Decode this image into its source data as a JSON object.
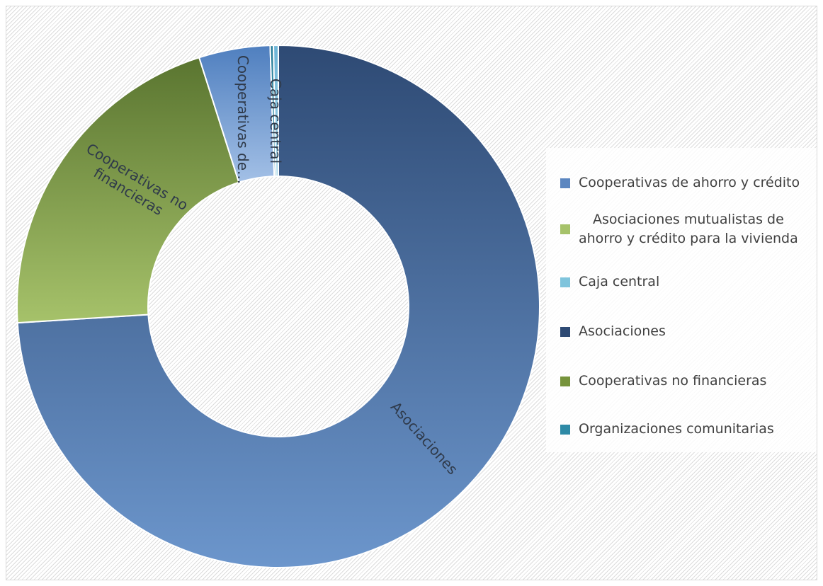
{
  "chart_data": {
    "type": "donut",
    "title": "",
    "series": [
      {
        "name": "Asociaciones",
        "value": 74.0,
        "color": "#4a6fa5",
        "gradient": [
          "#2e4a74",
          "#6c96cc"
        ],
        "label": "Asociaciones"
      },
      {
        "name": "Cooperativas no financieras",
        "value": 21.1,
        "color": "#76933c",
        "gradient": [
          "#5a7530",
          "#a6c26a"
        ],
        "label": "Cooperativas no financieras"
      },
      {
        "name": "Cooperativas de ahorro y crédito",
        "value": 4.4,
        "color": "#6c96cc",
        "gradient": [
          "#4f7fbf",
          "#a3c0e6"
        ],
        "label": "Cooperativas de..."
      },
      {
        "name": "Caja central",
        "value": 0.3,
        "color": "#7fc4dc",
        "gradient": [
          "#6cb4d6",
          "#a9d8ea"
        ],
        "label": "Caja central"
      },
      {
        "name": "Organizaciones comunitarias",
        "value": 0.2,
        "color": "#2e8aa6",
        "gradient": [
          "#237a96",
          "#4aa0bb"
        ],
        "label": ""
      },
      {
        "name": "Asociaciones mutualistas de ahorro y crédito para la vivienda",
        "value": 0.0,
        "color": "#b8d07a",
        "gradient": [
          "#9cbb5c",
          "#c7dc8e"
        ],
        "label": ""
      }
    ],
    "legend": {
      "position": "right",
      "items": [
        {
          "label": "Cooperativas de ahorro y crédito",
          "color": "#5b86c0"
        },
        {
          "label": "Asociaciones mutualistas de ahorro y crédito para la vivienda",
          "lines": [
            "Asociaciones mutualistas de",
            "ahorro y crédito para la vivienda"
          ],
          "color": "#a6c26a"
        },
        {
          "label": "Caja central",
          "color": "#7fc4dc"
        },
        {
          "label": "Asociaciones",
          "color": "#2e4a74"
        },
        {
          "label": "Cooperativas no financieras",
          "color": "#76933c"
        },
        {
          "label": "Organizaciones comunitarias",
          "color": "#2e8aa6"
        }
      ]
    }
  }
}
